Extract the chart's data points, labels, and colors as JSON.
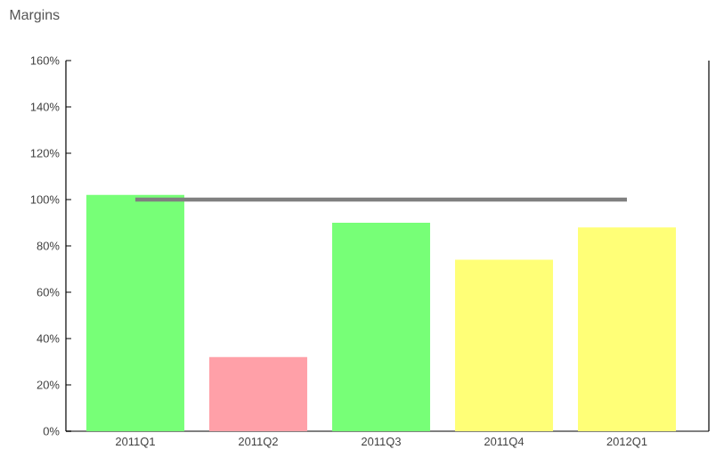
{
  "chart_data": {
    "type": "bar",
    "title": "Margins",
    "categories": [
      "2011Q1",
      "2011Q2",
      "2011Q3",
      "2011Q4",
      "2012Q1"
    ],
    "series": [
      {
        "colors": [
          "#77ff77",
          "#ffa0a8",
          "#77ff77",
          "#ffff77",
          "#ffff77"
        ],
        "values": [
          102,
          32,
          90,
          74,
          88
        ]
      },
      {
        "type": "line",
        "color": "#808080",
        "values": [
          100,
          100,
          100,
          100,
          100
        ]
      }
    ],
    "ylim": [
      0,
      160
    ],
    "yticks": [
      {
        "value": 0,
        "label": "0%"
      },
      {
        "value": 20,
        "label": "20%"
      },
      {
        "value": 40,
        "label": "40%"
      },
      {
        "value": 60,
        "label": "60%"
      },
      {
        "value": 80,
        "label": "80%"
      },
      {
        "value": 100,
        "label": "100%"
      },
      {
        "value": 120,
        "label": "120%"
      },
      {
        "value": 140,
        "label": "140%"
      },
      {
        "value": 160,
        "label": "160%"
      }
    ],
    "grid": false
  }
}
